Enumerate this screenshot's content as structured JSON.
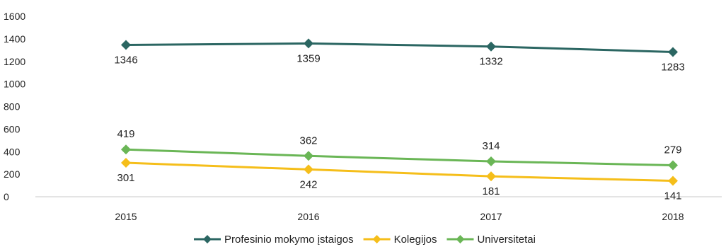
{
  "chart_data": {
    "type": "line",
    "categories": [
      "2015",
      "2016",
      "2017",
      "2018"
    ],
    "ylim": [
      0,
      1600
    ],
    "yticks": [
      0,
      200,
      400,
      600,
      800,
      1000,
      1200,
      1400,
      1600
    ],
    "grid": false,
    "legend_position": "bottom",
    "series": [
      {
        "name": "Profesinio mokymo įstaigos",
        "values": [
          1346,
          1359,
          1332,
          1283
        ],
        "color": "#2b6662",
        "label_position": "below"
      },
      {
        "name": "Kolegijos",
        "values": [
          301,
          242,
          181,
          141
        ],
        "color": "#f5be1a",
        "label_position": "below"
      },
      {
        "name": "Universitetai",
        "values": [
          419,
          362,
          314,
          279
        ],
        "color": "#6ab656",
        "label_position": "above"
      }
    ]
  }
}
